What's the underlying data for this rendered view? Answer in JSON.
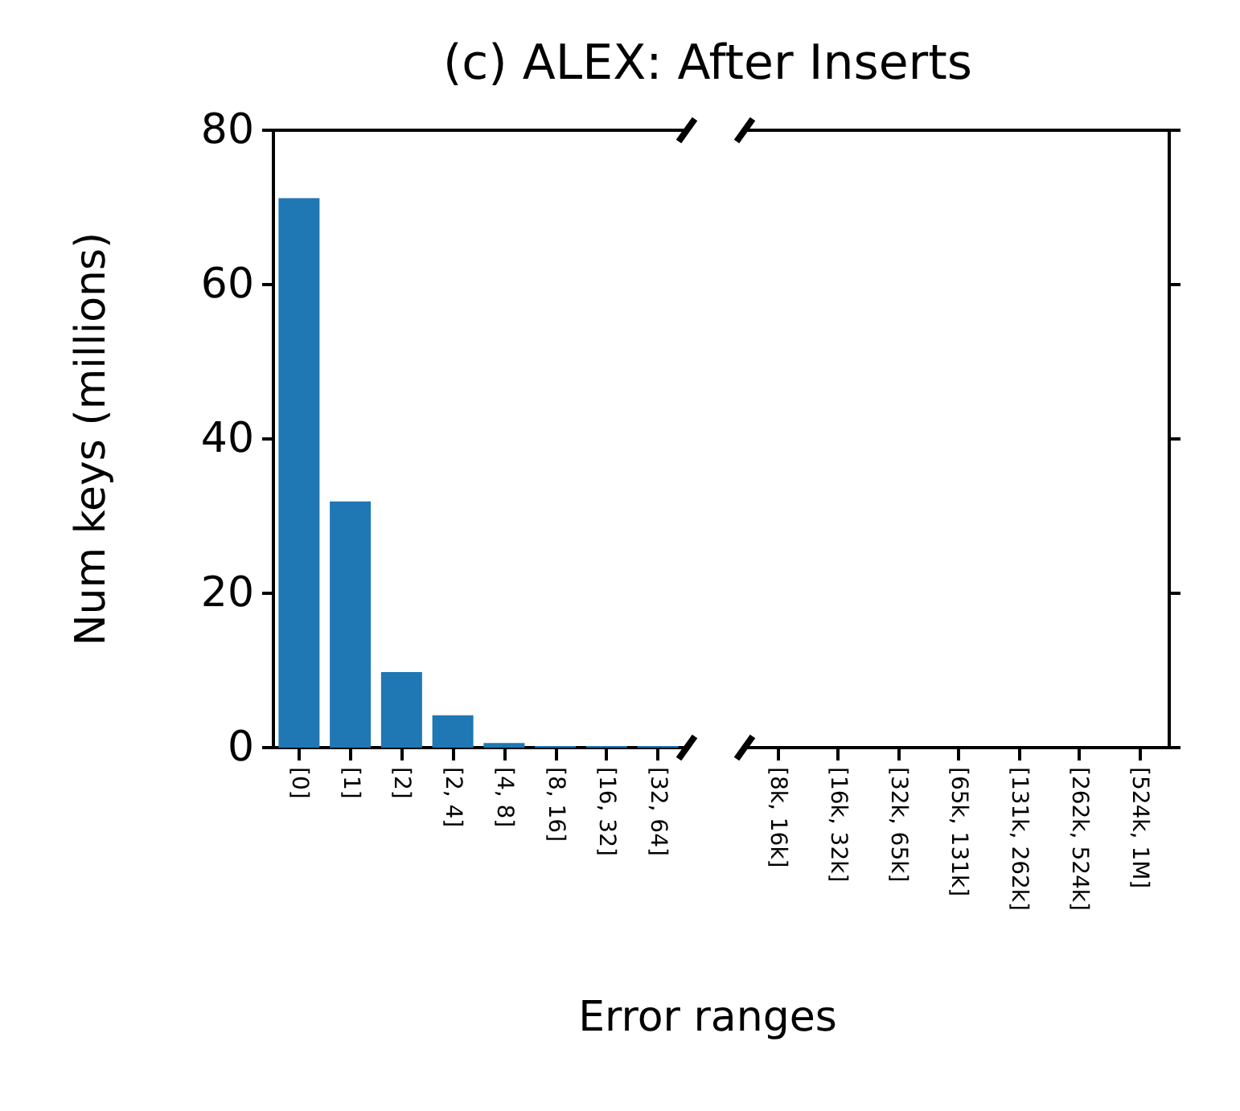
{
  "chart_data": [
    {
      "type": "bar",
      "title": "(c) ALEX: After Inserts",
      "xlabel": "Error ranges",
      "ylabel": "Num keys (millions)",
      "categories": [
        "[0]",
        "[1]",
        "[2]",
        "[2, 4]",
        "[4, 8]",
        "[8, 16]",
        "[16, 32]",
        "[32, 64]"
      ],
      "values": [
        71.2,
        31.9,
        9.8,
        4.2,
        0.6,
        0.2,
        0.2,
        0.2
      ],
      "color": "#1f77b4",
      "ylim": [
        0,
        80
      ],
      "yticks": [
        0,
        20,
        40,
        60,
        80
      ]
    },
    {
      "type": "bar",
      "categories": [
        "[8k, 16k]",
        "[16k, 32k]",
        "[32k, 65k]",
        "[65k, 131k]",
        "[131k, 262k]",
        "[262k, 524k]",
        "[524k, 1M]"
      ],
      "values": [
        0,
        0,
        0,
        0,
        0,
        0,
        0
      ],
      "color": "#1f77b4",
      "ylim": [
        0,
        80
      ],
      "yticks": [
        0,
        20,
        40,
        60,
        80
      ],
      "tick_labels": "x"
    }
  ]
}
